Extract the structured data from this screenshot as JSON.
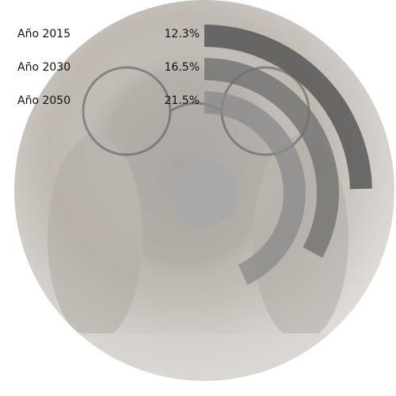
{
  "chart_data": {
    "type": "radial-bar",
    "categories": [
      "Año 2015",
      "Año 2030",
      "Año 2050"
    ],
    "values": [
      12.3,
      16.5,
      21.5
    ],
    "value_labels": [
      "12.3%",
      "16.5%",
      "21.5%"
    ],
    "unit": "%",
    "title": "",
    "series_colors": [
      "#4a4a4a",
      "#6e6e6e",
      "#8a8a8a"
    ],
    "track_color": "#c8c8c8",
    "background_description_colors": {
      "disc": "#d9d6d2",
      "hub": "#a9a9a9"
    }
  }
}
